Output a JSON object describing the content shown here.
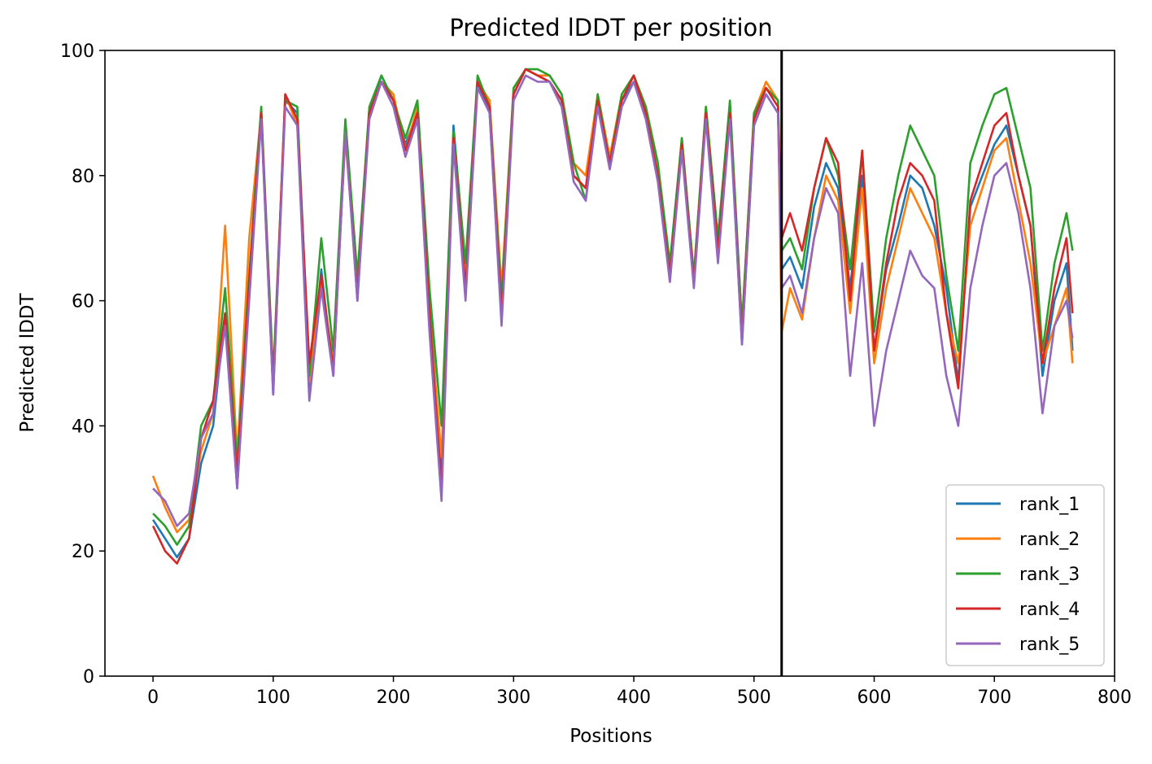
{
  "chart_data": {
    "type": "line",
    "title": "Predicted lDDT per position",
    "xlabel": "Positions",
    "ylabel": "Predicted lDDT",
    "xlim": [
      -40,
      800
    ],
    "ylim": [
      0,
      100
    ],
    "xticks": [
      0,
      100,
      200,
      300,
      400,
      500,
      600,
      700,
      800
    ],
    "yticks": [
      0,
      20,
      40,
      60,
      80,
      100
    ],
    "legend_position": "lower-right",
    "vline_x": 523,
    "series": [
      {
        "name": "rank_1",
        "color": "#1f77b4",
        "x": [
          0,
          10,
          20,
          30,
          40,
          50,
          60,
          70,
          80,
          90,
          100,
          110,
          120,
          130,
          140,
          150,
          160,
          170,
          180,
          190,
          200,
          210,
          220,
          230,
          240,
          250,
          260,
          270,
          280,
          290,
          300,
          310,
          320,
          330,
          340,
          350,
          360,
          370,
          380,
          390,
          400,
          410,
          420,
          430,
          440,
          450,
          460,
          470,
          480,
          490,
          500,
          510,
          520,
          523,
          530,
          540,
          550,
          560,
          570,
          580,
          590,
          600,
          610,
          620,
          630,
          640,
          650,
          660,
          670,
          680,
          690,
          700,
          710,
          720,
          730,
          740,
          750,
          760,
          765
        ],
        "y": [
          25,
          22,
          19,
          22,
          34,
          40,
          58,
          30,
          62,
          90,
          45,
          92,
          90,
          45,
          65,
          48,
          88,
          60,
          90,
          96,
          92,
          85,
          90,
          60,
          33,
          88,
          65,
          95,
          90,
          57,
          93,
          97,
          96,
          95,
          92,
          80,
          78,
          92,
          82,
          92,
          95,
          90,
          80,
          65,
          85,
          63,
          90,
          68,
          90,
          53,
          88,
          93,
          90,
          65,
          67,
          62,
          75,
          82,
          78,
          62,
          80,
          52,
          65,
          72,
          80,
          78,
          72,
          62,
          47,
          75,
          80,
          85,
          88,
          80,
          72,
          48,
          60,
          66,
          52
        ]
      },
      {
        "name": "rank_2",
        "color": "#ff7f0e",
        "x": [
          0,
          10,
          20,
          30,
          40,
          50,
          60,
          70,
          80,
          90,
          100,
          110,
          120,
          130,
          140,
          150,
          160,
          170,
          180,
          190,
          200,
          210,
          220,
          230,
          240,
          250,
          260,
          270,
          280,
          290,
          300,
          310,
          320,
          330,
          340,
          350,
          360,
          370,
          380,
          390,
          400,
          410,
          420,
          430,
          440,
          450,
          460,
          470,
          480,
          490,
          500,
          510,
          520,
          523,
          530,
          540,
          550,
          560,
          570,
          580,
          590,
          600,
          610,
          620,
          630,
          640,
          650,
          660,
          670,
          680,
          690,
          700,
          710,
          720,
          730,
          740,
          750,
          760,
          765
        ],
        "y": [
          32,
          27,
          23,
          25,
          36,
          42,
          72,
          35,
          70,
          90,
          46,
          93,
          88,
          47,
          63,
          50,
          86,
          62,
          90,
          95,
          93,
          84,
          91,
          58,
          35,
          86,
          64,
          95,
          92,
          62,
          94,
          97,
          96,
          96,
          93,
          82,
          80,
          93,
          83,
          93,
          96,
          91,
          82,
          63,
          86,
          64,
          91,
          70,
          91,
          56,
          90,
          95,
          92,
          55,
          62,
          57,
          70,
          80,
          76,
          58,
          78,
          50,
          62,
          70,
          78,
          74,
          70,
          58,
          50,
          72,
          78,
          84,
          86,
          76,
          66,
          50,
          56,
          62,
          50
        ]
      },
      {
        "name": "rank_3",
        "color": "#2ca02c",
        "x": [
          0,
          10,
          20,
          30,
          40,
          50,
          60,
          70,
          80,
          90,
          100,
          110,
          120,
          130,
          140,
          150,
          160,
          170,
          180,
          190,
          200,
          210,
          220,
          230,
          240,
          250,
          260,
          270,
          280,
          290,
          300,
          310,
          320,
          330,
          340,
          350,
          360,
          370,
          380,
          390,
          400,
          410,
          420,
          430,
          440,
          450,
          460,
          470,
          480,
          490,
          500,
          510,
          520,
          523,
          530,
          540,
          550,
          560,
          570,
          580,
          590,
          600,
          610,
          620,
          630,
          640,
          650,
          660,
          670,
          680,
          690,
          700,
          710,
          720,
          730,
          740,
          750,
          760,
          765
        ],
        "y": [
          26,
          24,
          21,
          24,
          40,
          44,
          62,
          34,
          64,
          91,
          48,
          92,
          91,
          48,
          70,
          52,
          89,
          64,
          91,
          96,
          92,
          86,
          92,
          62,
          40,
          87,
          66,
          96,
          91,
          60,
          94,
          97,
          97,
          96,
          93,
          82,
          76,
          93,
          82,
          93,
          96,
          91,
          82,
          66,
          86,
          64,
          91,
          70,
          92,
          56,
          90,
          94,
          92,
          68,
          70,
          65,
          78,
          86,
          80,
          65,
          84,
          55,
          70,
          80,
          88,
          84,
          80,
          64,
          52,
          82,
          88,
          93,
          94,
          86,
          78,
          52,
          66,
          74,
          68
        ]
      },
      {
        "name": "rank_4",
        "color": "#d62728",
        "x": [
          0,
          10,
          20,
          30,
          40,
          50,
          60,
          70,
          80,
          90,
          100,
          110,
          120,
          130,
          140,
          150,
          160,
          170,
          180,
          190,
          200,
          210,
          220,
          230,
          240,
          250,
          260,
          270,
          280,
          290,
          300,
          310,
          320,
          330,
          340,
          350,
          360,
          370,
          380,
          390,
          400,
          410,
          420,
          430,
          440,
          450,
          460,
          470,
          480,
          490,
          500,
          510,
          520,
          523,
          530,
          540,
          550,
          560,
          570,
          580,
          590,
          600,
          610,
          620,
          630,
          640,
          650,
          660,
          670,
          680,
          690,
          700,
          710,
          720,
          730,
          740,
          750,
          760,
          765
        ],
        "y": [
          24,
          20,
          18,
          22,
          38,
          44,
          58,
          32,
          63,
          90,
          46,
          93,
          89,
          50,
          64,
          49,
          87,
          61,
          90,
          95,
          92,
          84,
          90,
          58,
          30,
          86,
          62,
          95,
          91,
          58,
          93,
          97,
          96,
          95,
          92,
          80,
          78,
          92,
          82,
          92,
          96,
          90,
          80,
          64,
          85,
          63,
          90,
          68,
          90,
          54,
          89,
          94,
          91,
          70,
          74,
          68,
          78,
          86,
          82,
          60,
          84,
          52,
          66,
          76,
          82,
          80,
          76,
          58,
          46,
          76,
          82,
          88,
          90,
          80,
          72,
          50,
          62,
          70,
          58
        ]
      },
      {
        "name": "rank_5",
        "color": "#9467bd",
        "x": [
          0,
          10,
          20,
          30,
          40,
          50,
          60,
          70,
          80,
          90,
          100,
          110,
          120,
          130,
          140,
          150,
          160,
          170,
          180,
          190,
          200,
          210,
          220,
          230,
          240,
          250,
          260,
          270,
          280,
          290,
          300,
          310,
          320,
          330,
          340,
          350,
          360,
          370,
          380,
          390,
          400,
          410,
          420,
          430,
          440,
          450,
          460,
          470,
          480,
          490,
          500,
          510,
          520,
          523,
          530,
          540,
          550,
          560,
          570,
          580,
          590,
          600,
          610,
          620,
          630,
          640,
          650,
          660,
          670,
          680,
          690,
          700,
          710,
          720,
          730,
          740,
          750,
          760,
          765
        ],
        "y": [
          30,
          28,
          24,
          26,
          38,
          42,
          56,
          30,
          60,
          89,
          45,
          91,
          88,
          44,
          62,
          48,
          87,
          60,
          89,
          95,
          91,
          83,
          89,
          55,
          28,
          85,
          60,
          94,
          90,
          56,
          92,
          96,
          95,
          95,
          91,
          79,
          76,
          91,
          81,
          91,
          95,
          89,
          79,
          63,
          84,
          62,
          89,
          66,
          89,
          53,
          88,
          93,
          90,
          62,
          64,
          58,
          70,
          78,
          74,
          48,
          66,
          40,
          52,
          60,
          68,
          64,
          62,
          48,
          40,
          62,
          72,
          80,
          82,
          74,
          62,
          42,
          56,
          60,
          54
        ]
      }
    ]
  }
}
